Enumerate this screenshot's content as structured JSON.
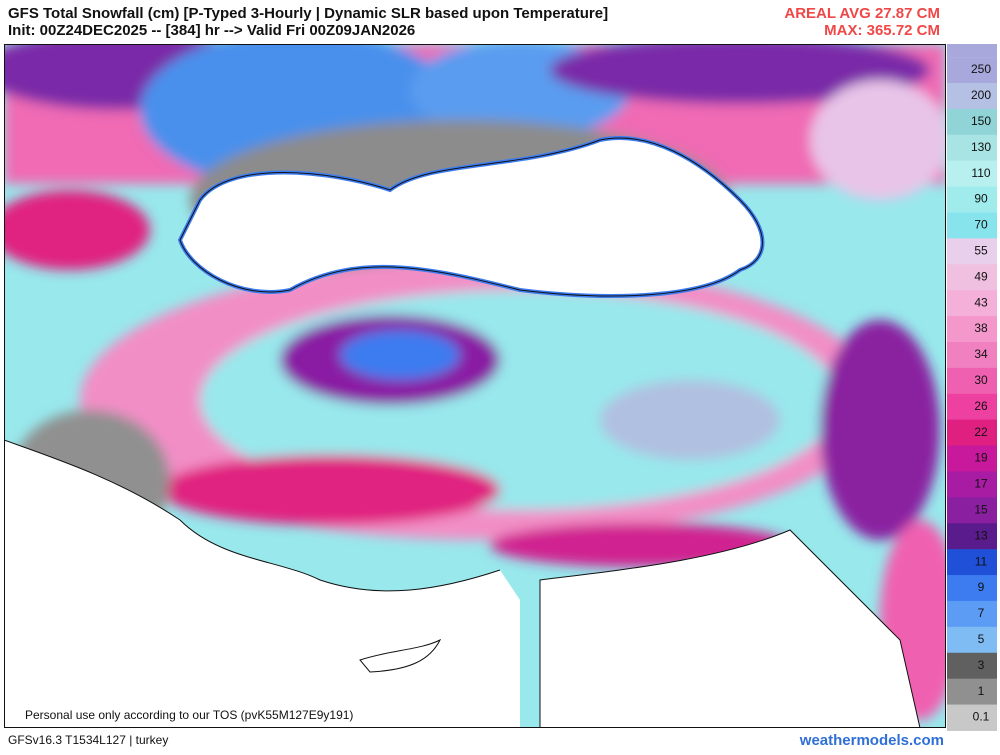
{
  "header": {
    "title": "GFS Total Snowfall (cm) [P-Typed 3-Hourly | Dynamic SLR based upon Temperature]",
    "init": "Init: 00Z24DEC2025 -- [384] hr --> Valid Fri 00Z09JAN2026",
    "areal_avg": "AREAL AVG 27.87 CM",
    "max": "MAX: 365.72 CM"
  },
  "colorbar": {
    "levels": [
      250,
      200,
      150,
      130,
      110,
      90,
      70,
      55,
      49,
      43,
      38,
      34,
      30,
      26,
      22,
      19,
      17,
      15,
      13,
      11,
      9,
      7,
      5,
      3,
      1,
      0.1
    ],
    "colors": [
      "#a8a8dc",
      "#b4c0e4",
      "#90d4d8",
      "#a8e4e4",
      "#b8f0f0",
      "#a0ecec",
      "#88e4ec",
      "#e8d0ec",
      "#f0c0e0",
      "#f4b0d8",
      "#f498cc",
      "#f080c0",
      "#f060b0",
      "#ee40a0",
      "#e02080",
      "#c8189c",
      "#a81ca4",
      "#8a20a0",
      "#5a1c8c",
      "#2050d8",
      "#3c7cf0",
      "#5c9cf4",
      "#80bcf4",
      "#606060",
      "#909090",
      "#c8c8c8"
    ]
  },
  "map": {
    "notice": "Personal use only according to our TOS (pvK55M127E9y191)"
  },
  "footer": {
    "model": "GFSv16.3 T1534L127 | turkey",
    "site": "weathermodels.com"
  }
}
